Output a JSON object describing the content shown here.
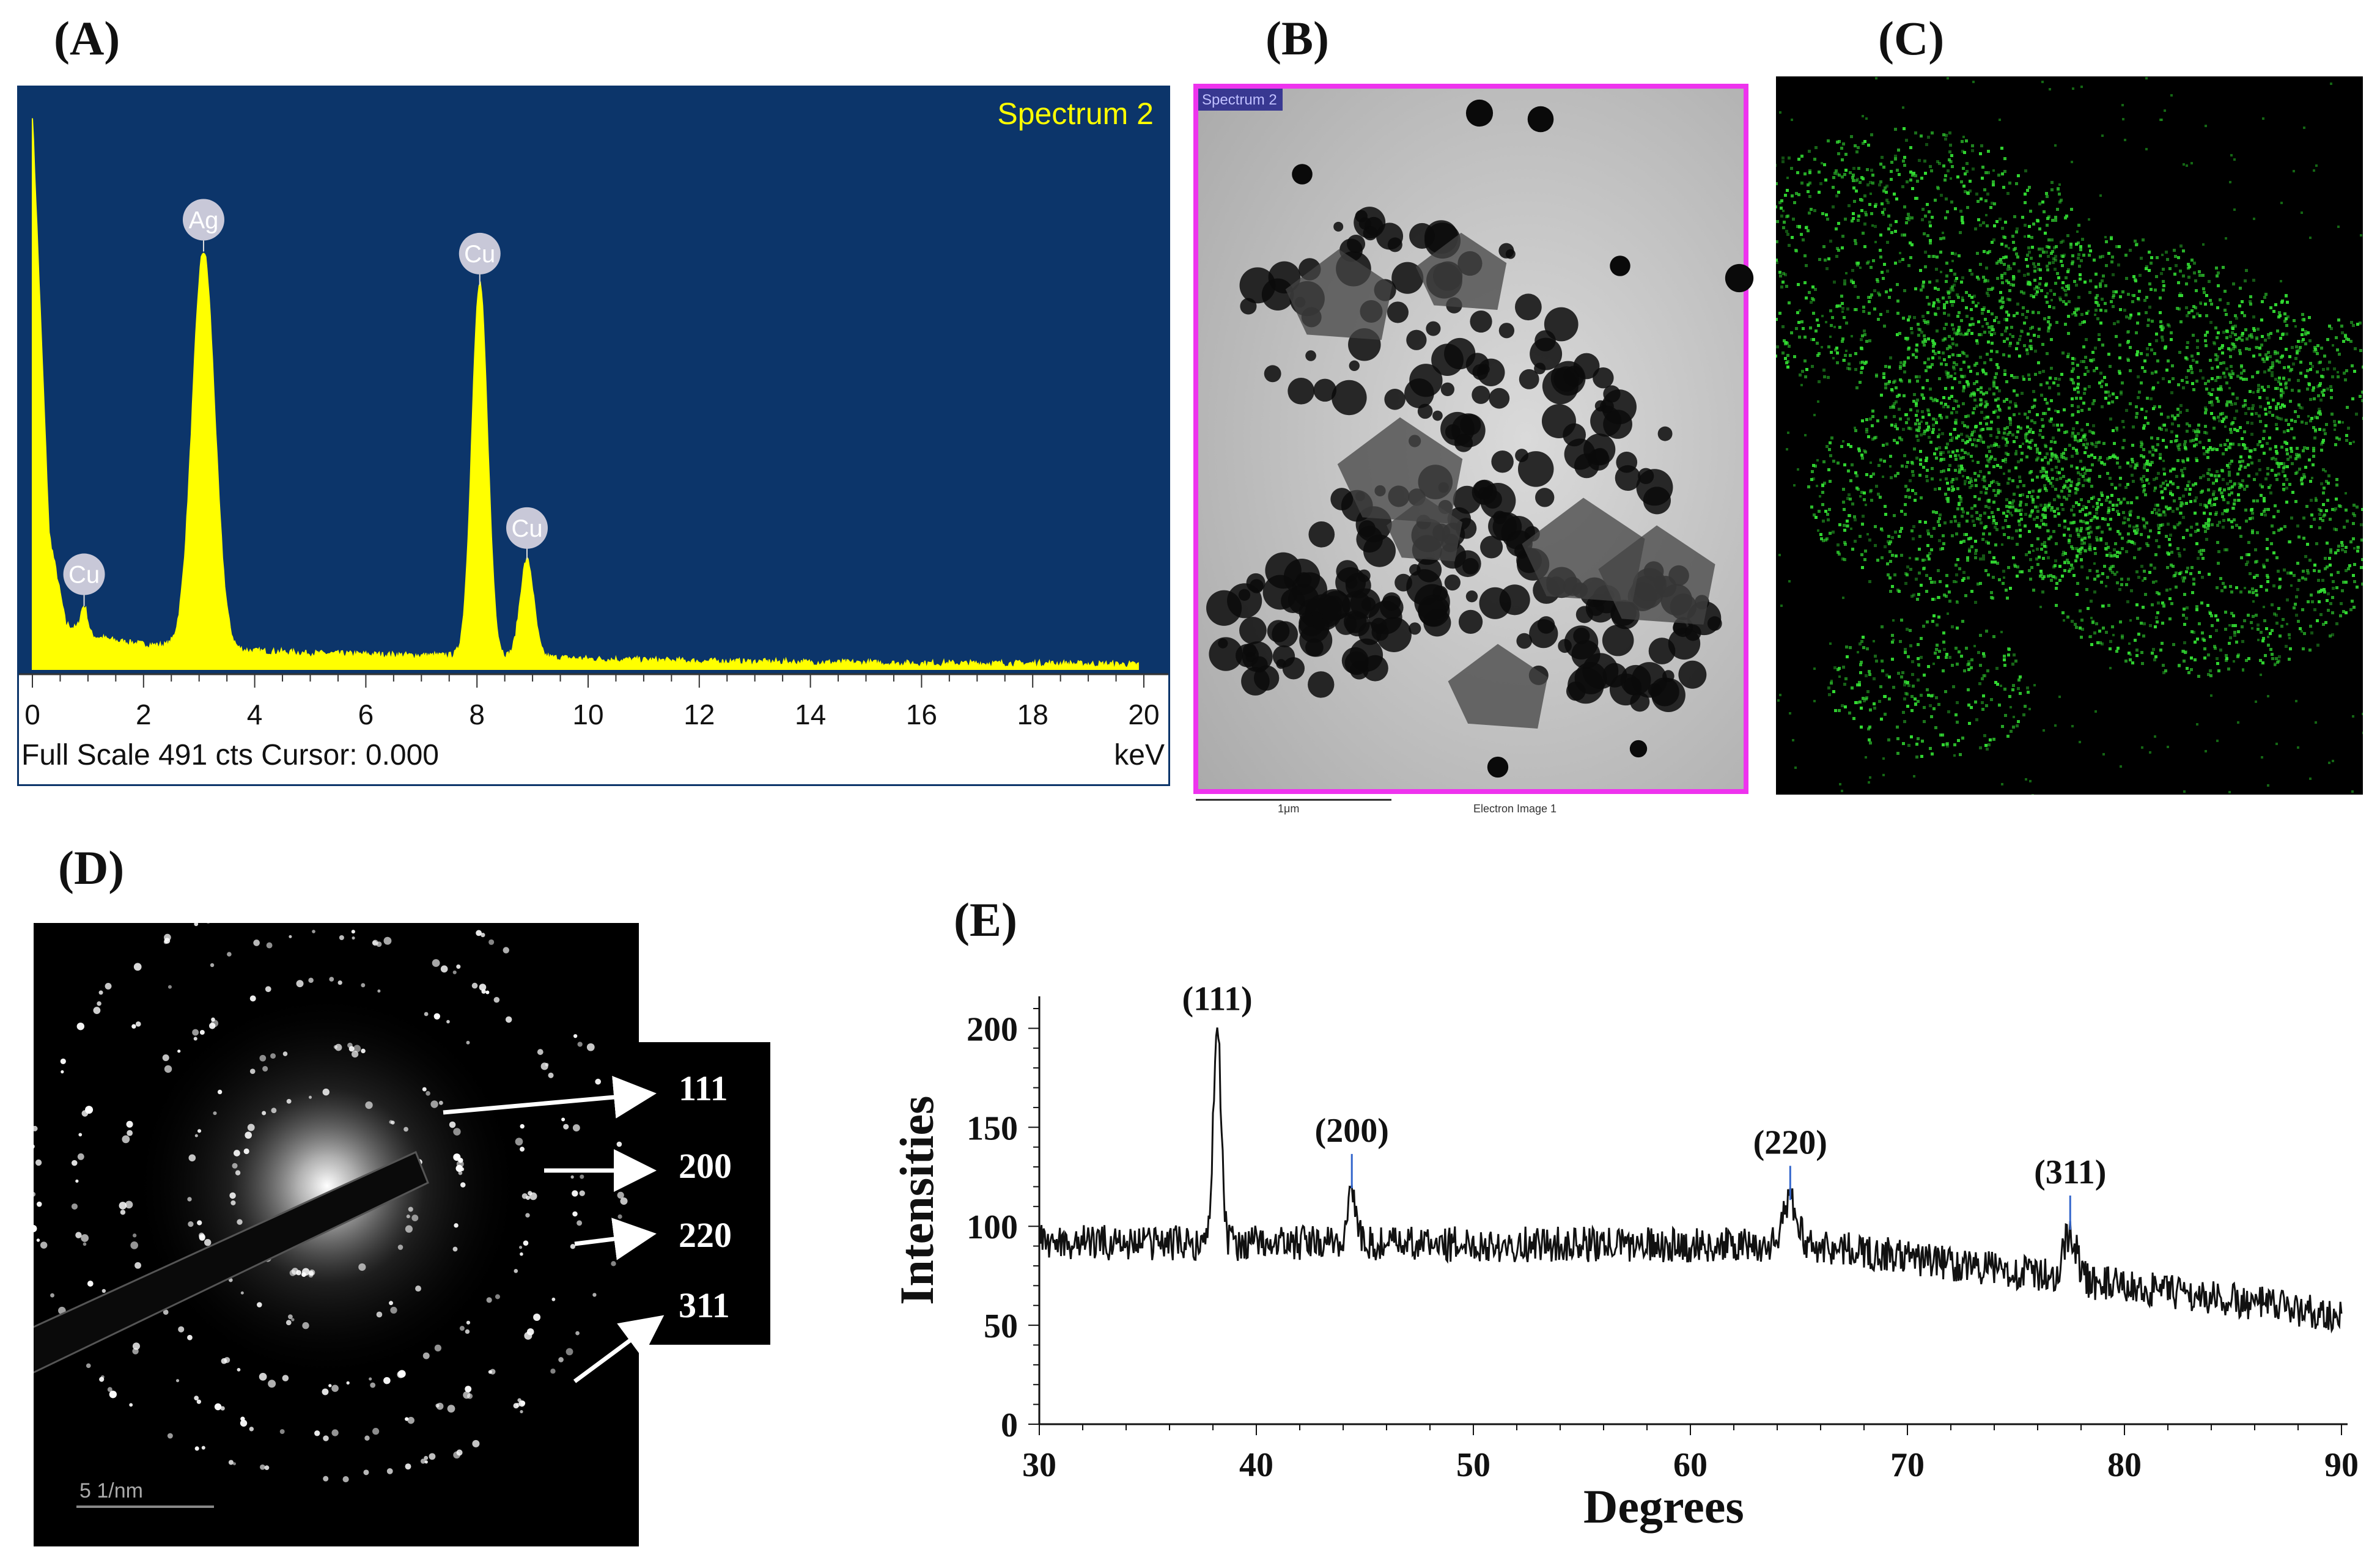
{
  "figure": {
    "panels": {
      "a": {
        "label": "(A)"
      },
      "b": {
        "label": "(B)"
      },
      "c": {
        "label": "(C)"
      },
      "d": {
        "label": "(D)"
      },
      "e": {
        "label": "(E)"
      }
    }
  },
  "panel_b": {
    "overlay_label": "Spectrum 2",
    "scale_bar_label": "1μm",
    "caption": "Electron Image 1",
    "colors": {
      "frame": "#ee33ee",
      "background": "#c4c4c4",
      "particle": "#0a0a0a"
    }
  },
  "panel_c": {
    "colors": {
      "background": "#000000",
      "signal": "#33dd33"
    }
  },
  "panel_d": {
    "ring_labels": [
      "111",
      "200",
      "220",
      "311"
    ],
    "scale_bar_label": "5 1/nm",
    "colors": {
      "background": "#000000",
      "label_box": "#000000",
      "label_text": "#ffffff"
    }
  },
  "chart_data": [
    {
      "type": "area",
      "title": "Spectrum 2",
      "xlabel": "keV",
      "ylabel": "",
      "xlim": [
        0,
        20
      ],
      "ylim": [
        0,
        491
      ],
      "x_ticks": [
        "0",
        "2",
        "4",
        "6",
        "8",
        "10",
        "12",
        "14",
        "16",
        "18",
        "20"
      ],
      "status_text": "Full Scale 491 cts Cursor: 0.000",
      "peaks": [
        {
          "element": "Cu",
          "x": 0.93,
          "y": 56
        },
        {
          "element": "Ag",
          "x": 3.08,
          "y": 370
        },
        {
          "element": "Cu",
          "x": 8.05,
          "y": 340
        },
        {
          "element": "Cu",
          "x": 8.9,
          "y": 97
        }
      ],
      "baseline_points": {
        "x": [
          0,
          0.3,
          0.6,
          1,
          1.5,
          2,
          2.5,
          4,
          5,
          6,
          7,
          7.6,
          9.5,
          10,
          12,
          14,
          16,
          18,
          19.9
        ],
        "y": [
          491,
          120,
          40,
          30,
          25,
          22,
          20,
          16,
          14,
          13,
          12,
          12,
          10,
          9,
          7,
          6,
          5,
          5,
          4
        ]
      },
      "colors": {
        "background": "#0c356a",
        "fill": "#ffff00",
        "text": "#ffff00",
        "frame": "#ffffff"
      }
    },
    {
      "type": "line",
      "title": "",
      "xlabel": "Degrees",
      "ylabel": "Intensities",
      "xlim": [
        30,
        90
      ],
      "ylim": [
        0,
        210
      ],
      "x_ticks": [
        "30",
        "40",
        "50",
        "60",
        "70",
        "80",
        "90"
      ],
      "y_ticks": [
        "0",
        "50",
        "100",
        "150",
        "200"
      ],
      "peaks": [
        {
          "label": "(111)",
          "x": 38.2,
          "y": 200
        },
        {
          "label": "(200)",
          "x": 44.4,
          "y": 118
        },
        {
          "label": "(220)",
          "x": 64.6,
          "y": 112
        },
        {
          "label": "(311)",
          "x": 77.5,
          "y": 97
        }
      ],
      "colors": {
        "line": "#111111",
        "marker": "#3366cc"
      }
    }
  ]
}
